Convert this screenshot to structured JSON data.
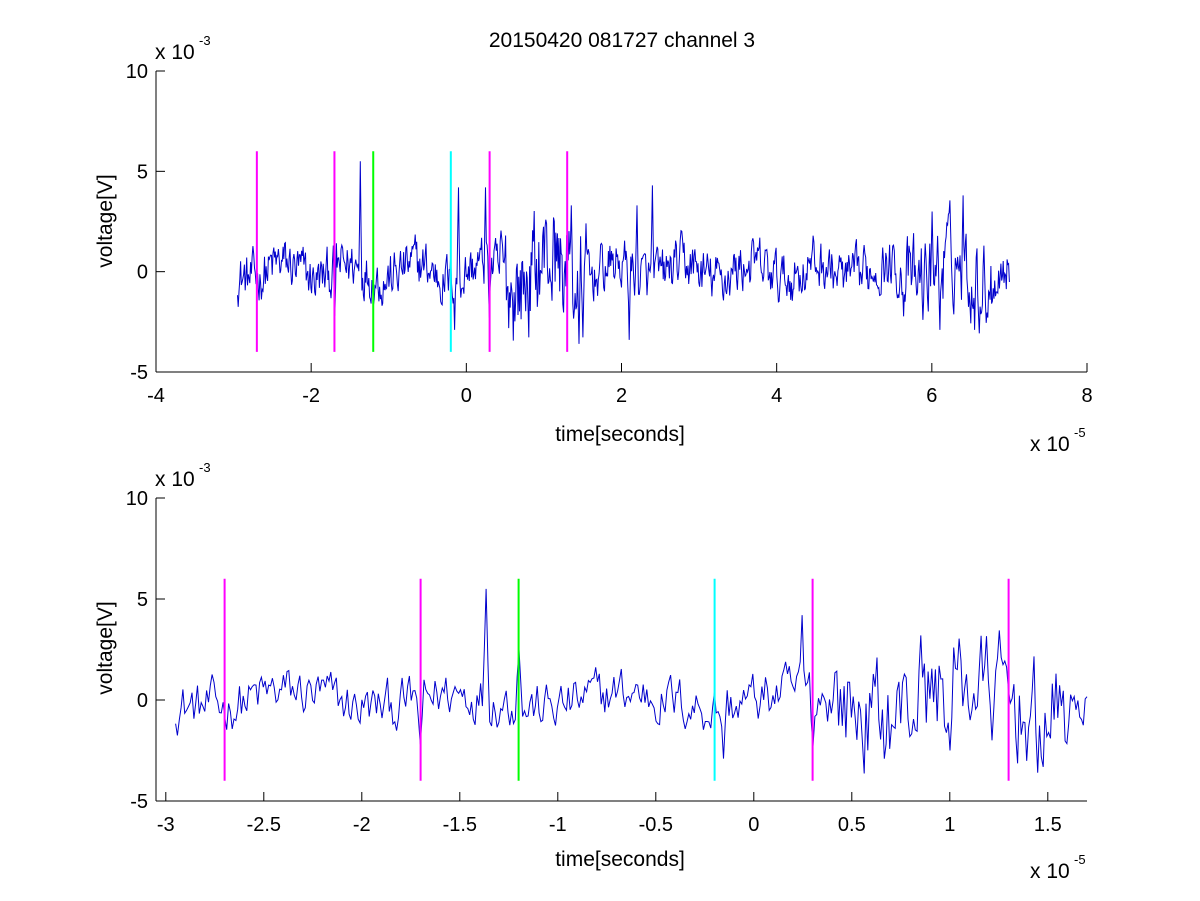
{
  "chart_data": [
    {
      "type": "line",
      "title": "20150420 081727 channel 3",
      "xlabel": "time[seconds]",
      "ylabel": "voltage[V]",
      "xlim": [
        -4,
        8
      ],
      "ylim": [
        -5,
        10
      ],
      "x_ticks": [
        -4,
        -2,
        0,
        2,
        4,
        6,
        8
      ],
      "y_ticks": [
        -5,
        0,
        5,
        10
      ],
      "x_tick_labels": [
        "-4",
        "-2",
        "0",
        "2",
        "4",
        "6",
        "8"
      ],
      "y_tick_labels": [
        "-5",
        "0",
        "5",
        "10"
      ],
      "x_multiplier": {
        "base": "x 10",
        "exponent": "-5"
      },
      "y_multiplier": {
        "base": "x 10",
        "exponent": "-3"
      },
      "grid": false,
      "signal": {
        "color": "#0000cc",
        "x_range": [
          -2.95,
          7.0
        ],
        "points": 1000,
        "peaks": [
          [
            -1.37,
            5.5
          ],
          [
            -0.1,
            4.2
          ],
          [
            0.25,
            4.2
          ],
          [
            1.35,
            3.3
          ],
          [
            2.4,
            4.3
          ],
          [
            2.2,
            3.3
          ],
          [
            6.4,
            3.8
          ],
          [
            6.0,
            3.0
          ]
        ],
        "troughs": [
          [
            -1.7,
            -2.2
          ],
          [
            -0.15,
            -2.9
          ],
          [
            0.3,
            -2.3
          ],
          [
            1.45,
            -3.6
          ],
          [
            2.1,
            -3.4
          ],
          [
            6.1,
            -2.9
          ],
          [
            6.55,
            -2.9
          ]
        ]
      },
      "markers": [
        {
          "x": -2.7,
          "y0": -4,
          "y1": 6,
          "color": "#ff00ff"
        },
        {
          "x": -1.7,
          "y0": -4,
          "y1": 6,
          "color": "#ff00ff"
        },
        {
          "x": -1.2,
          "y0": -4,
          "y1": 6,
          "color": "#00ff00"
        },
        {
          "x": -0.2,
          "y0": -4,
          "y1": 6,
          "color": "#00ffff"
        },
        {
          "x": 0.3,
          "y0": -4,
          "y1": 6,
          "color": "#ff00ff"
        },
        {
          "x": 1.3,
          "y0": -4,
          "y1": 6,
          "color": "#ff00ff"
        }
      ]
    },
    {
      "type": "line",
      "title": "",
      "xlabel": "time[seconds]",
      "ylabel": "voltage[V]",
      "xlim": [
        -3.05,
        1.7
      ],
      "ylim": [
        -5,
        10
      ],
      "x_ticks": [
        -3,
        -2.5,
        -2,
        -1.5,
        -1,
        -0.5,
        0,
        0.5,
        1,
        1.5
      ],
      "y_ticks": [
        -5,
        0,
        5,
        10
      ],
      "x_tick_labels": [
        "-3",
        "-2.5",
        "-2",
        "-1.5",
        "-1",
        "-0.5",
        "0",
        "0.5",
        "1",
        "1.5"
      ],
      "y_tick_labels": [
        "-5",
        "0",
        "5",
        "10"
      ],
      "x_multiplier": {
        "base": "x 10",
        "exponent": "-5"
      },
      "y_multiplier": {
        "base": "x 10",
        "exponent": "-3"
      },
      "grid": false,
      "signal": {
        "color": "#0000cc",
        "x_range": [
          -2.95,
          1.7
        ],
        "points": 500,
        "peaks": [
          [
            -1.37,
            5.5
          ],
          [
            -1.2,
            2.5
          ],
          [
            0.25,
            4.2
          ],
          [
            0.85,
            3.2
          ],
          [
            1.0,
            3.3
          ],
          [
            1.45,
            1.8
          ]
        ],
        "troughs": [
          [
            -1.7,
            -2.2
          ],
          [
            -0.15,
            -2.9
          ],
          [
            0.3,
            -2.3
          ],
          [
            1.45,
            -3.6
          ],
          [
            1.0,
            -2.5
          ]
        ]
      },
      "markers": [
        {
          "x": -2.7,
          "y0": -4,
          "y1": 6,
          "color": "#ff00ff"
        },
        {
          "x": -1.7,
          "y0": -4,
          "y1": 6,
          "color": "#ff00ff"
        },
        {
          "x": -1.2,
          "y0": -4,
          "y1": 6,
          "color": "#00ff00"
        },
        {
          "x": -0.2,
          "y0": -4,
          "y1": 6,
          "color": "#00ffff"
        },
        {
          "x": 0.3,
          "y0": -4,
          "y1": 6,
          "color": "#ff00ff"
        },
        {
          "x": 1.3,
          "y0": -4,
          "y1": 6,
          "color": "#ff00ff"
        }
      ]
    }
  ]
}
